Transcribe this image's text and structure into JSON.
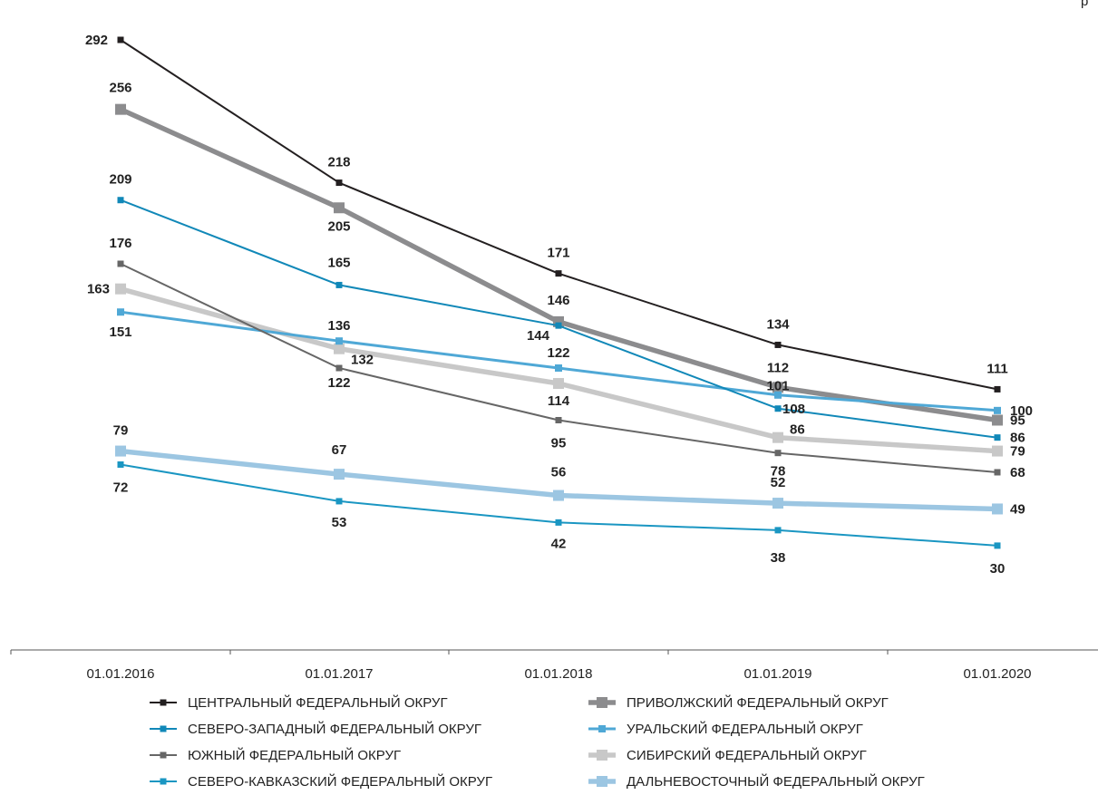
{
  "corner_text": "р",
  "chart_data": {
    "type": "line",
    "categories": [
      "01.01.2016",
      "01.01.2017",
      "01.01.2018",
      "01.01.2019",
      "01.01.2020"
    ],
    "ylim": [
      0,
      300
    ],
    "grid": false,
    "legend_position": "bottom",
    "series": [
      {
        "name": "ЦЕНТРАЛЬНЫЙ ФЕДЕРАЛЬНЫЙ ОКРУГ",
        "values": [
          292,
          218,
          171,
          134,
          111
        ],
        "color": "#231f20",
        "style": "thin"
      },
      {
        "name": "СЕВЕРО-ЗАПАДНЫЙ ФЕДЕРАЛЬНЫЙ ОКРУГ",
        "values": [
          209,
          165,
          144,
          101,
          86
        ],
        "color": "#1188b8",
        "style": "thin"
      },
      {
        "name": "ЮЖНЫЙ ФЕДЕРАЛЬНЫЙ ОКРУГ",
        "values": [
          176,
          122,
          95,
          78,
          68
        ],
        "color": "#666666",
        "style": "thin"
      },
      {
        "name": "СЕВЕРО-КАВКАЗСКИЙ ФЕДЕРАЛЬНЫЙ ОКРУГ",
        "values": [
          72,
          53,
          42,
          38,
          30
        ],
        "color": "#1a96c2",
        "style": "thin"
      },
      {
        "name": "ПРИВОЛЖСКИЙ ФЕДЕРАЛЬНЫЙ ОКРУГ",
        "values": [
          256,
          205,
          146,
          112,
          95
        ],
        "color": "#8c8c8e",
        "style": "thick"
      },
      {
        "name": "УРАЛЬСКИЙ ФЕДЕРАЛЬНЫЙ ОКРУГ",
        "values": [
          151,
          136,
          122,
          108,
          100
        ],
        "color": "#4fa8d6",
        "style": "medium"
      },
      {
        "name": "СИБИРСКИЙ ФЕДЕРАЛЬНЫЙ ОКРУГ",
        "values": [
          163,
          132,
          114,
          86,
          79
        ],
        "color": "#c8c8c8",
        "style": "thick"
      },
      {
        "name": "ДАЛЬНЕВОСТОЧНЫЙ ФЕДЕРАЛЬНЫЙ ОКРУГ",
        "values": [
          79,
          67,
          56,
          52,
          49
        ],
        "color": "#9cc6e2",
        "style": "thick"
      }
    ]
  }
}
